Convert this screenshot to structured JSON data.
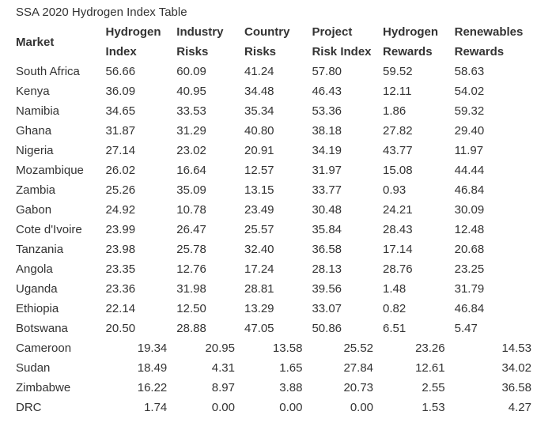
{
  "title": "SSA 2020 Hydrogen Index Table",
  "headers": [
    [
      "Market"
    ],
    [
      "Hydrogen",
      "Index"
    ],
    [
      "Industry",
      "Risks"
    ],
    [
      "Country",
      "Risks"
    ],
    [
      "Project",
      "Risk Index"
    ],
    [
      "Hydrogen",
      "Rewards"
    ],
    [
      "Renewables",
      "Rewards"
    ]
  ],
  "rows": [
    {
      "cells": [
        "South Africa",
        "56.66",
        "60.09",
        "41.24",
        "57.80",
        "59.52",
        "58.63"
      ],
      "align": "left"
    },
    {
      "cells": [
        "Kenya",
        "36.09",
        "40.95",
        "34.48",
        "46.43",
        "12.11",
        "54.02"
      ],
      "align": "left"
    },
    {
      "cells": [
        "Namibia",
        "34.65",
        "33.53",
        "35.34",
        "53.36",
        "1.86",
        "59.32"
      ],
      "align": "left"
    },
    {
      "cells": [
        "Ghana",
        "31.87",
        "31.29",
        "40.80",
        "38.18",
        "27.82",
        "29.40"
      ],
      "align": "left"
    },
    {
      "cells": [
        "Nigeria",
        "27.14",
        "23.02",
        "20.91",
        "34.19",
        "43.77",
        "11.97"
      ],
      "align": "left"
    },
    {
      "cells": [
        "Mozambique",
        "26.02",
        "16.64",
        "12.57",
        "31.97",
        "15.08",
        "44.44"
      ],
      "align": "left"
    },
    {
      "cells": [
        "Zambia",
        "25.26",
        "35.09",
        "13.15",
        "33.77",
        "0.93",
        "46.84"
      ],
      "align": "left"
    },
    {
      "cells": [
        "Gabon",
        "24.92",
        "10.78",
        "23.49",
        "30.48",
        "24.21",
        "30.09"
      ],
      "align": "left"
    },
    {
      "cells": [
        "Cote d'Ivoire",
        "23.99",
        "26.47",
        "25.57",
        "35.84",
        "28.43",
        "12.48"
      ],
      "align": "left"
    },
    {
      "cells": [
        "Tanzania",
        "23.98",
        "25.78",
        "32.40",
        "36.58",
        "17.14",
        "20.68"
      ],
      "align": "left"
    },
    {
      "cells": [
        "Angola",
        "23.35",
        "12.76",
        "17.24",
        "28.13",
        "28.76",
        "23.25"
      ],
      "align": "left"
    },
    {
      "cells": [
        "Uganda",
        "23.36",
        "31.98",
        "28.81",
        "39.56",
        "1.48",
        "31.79"
      ],
      "align": "left"
    },
    {
      "cells": [
        "Ethiopia",
        "22.14",
        "12.50",
        "13.29",
        "33.07",
        "0.82",
        "46.84"
      ],
      "align": "left"
    },
    {
      "cells": [
        "Botswana",
        "20.50",
        "28.88",
        "47.05",
        "50.86",
        "6.51",
        "5.47"
      ],
      "align": "left"
    },
    {
      "cells": [
        "Cameroon",
        "19.34",
        "20.95",
        "13.58",
        "25.52",
        "23.26",
        "14.53"
      ],
      "align": "right"
    },
    {
      "cells": [
        "Sudan",
        "18.49",
        "4.31",
        "1.65",
        "27.84",
        "12.61",
        "34.02"
      ],
      "align": "right"
    },
    {
      "cells": [
        "Zimbabwe",
        "16.22",
        "8.97",
        "3.88",
        "20.73",
        "2.55",
        "36.58"
      ],
      "align": "right"
    },
    {
      "cells": [
        "DRC",
        "1.74",
        "0.00",
        "0.00",
        "0.00",
        "1.53",
        "4.27"
      ],
      "align": "right"
    }
  ]
}
